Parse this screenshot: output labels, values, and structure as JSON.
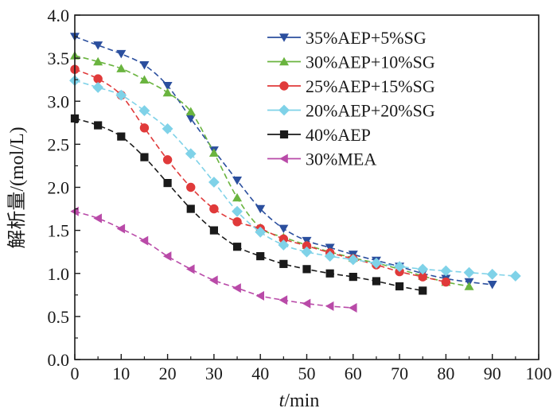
{
  "chart_data": {
    "type": "line",
    "xlabel_italic": "t",
    "xlabel_unit": "/min",
    "ylabel": "解析量/(mol/L)",
    "xlim": [
      0,
      100
    ],
    "ylim": [
      0,
      4.0
    ],
    "xticks": [
      "0",
      "10",
      "20",
      "30",
      "40",
      "50",
      "60",
      "70",
      "80",
      "90",
      "100"
    ],
    "yticks": [
      "0.0",
      "0.5",
      "1.0",
      "1.5",
      "2.0",
      "2.5",
      "3.0",
      "3.5",
      "4.0"
    ],
    "grid": false,
    "legend_position": "top-right",
    "series": [
      {
        "name": "35%AEP+5%SG",
        "color": "#2b4f9e",
        "marker": "triangle-down",
        "x": [
          0,
          5,
          10,
          15,
          20,
          25,
          30,
          35,
          40,
          45,
          50,
          55,
          60,
          65,
          70,
          75,
          80,
          85,
          90
        ],
        "y": [
          3.75,
          3.65,
          3.55,
          3.42,
          3.18,
          2.8,
          2.43,
          2.08,
          1.75,
          1.52,
          1.38,
          1.3,
          1.22,
          1.15,
          1.08,
          1.0,
          0.94,
          0.9,
          0.87
        ]
      },
      {
        "name": "30%AEP+10%SG",
        "color": "#6ab43f",
        "marker": "triangle-up",
        "x": [
          0,
          5,
          10,
          15,
          20,
          25,
          30,
          35,
          40,
          45,
          50,
          55,
          60,
          65,
          70,
          75,
          80,
          85
        ],
        "y": [
          3.53,
          3.46,
          3.38,
          3.25,
          3.1,
          2.88,
          2.4,
          1.88,
          1.53,
          1.42,
          1.33,
          1.25,
          1.18,
          1.12,
          1.05,
          0.97,
          0.9,
          0.85
        ]
      },
      {
        "name": "25%AEP+15%SG",
        "color": "#e03a3a",
        "marker": "circle",
        "x": [
          0,
          5,
          10,
          15,
          20,
          25,
          30,
          35,
          40,
          45,
          50,
          55,
          60,
          65,
          70,
          75,
          80
        ],
        "y": [
          3.37,
          3.26,
          3.07,
          2.69,
          2.32,
          2.0,
          1.75,
          1.6,
          1.52,
          1.4,
          1.32,
          1.24,
          1.17,
          1.1,
          1.02,
          0.96,
          0.9
        ]
      },
      {
        "name": "20%AEP+20%SG",
        "color": "#7fd2e8",
        "marker": "diamond",
        "x": [
          0,
          5,
          10,
          15,
          20,
          25,
          30,
          35,
          40,
          45,
          50,
          55,
          60,
          65,
          70,
          75,
          80,
          85,
          90,
          95
        ],
        "y": [
          3.24,
          3.16,
          3.07,
          2.89,
          2.68,
          2.39,
          2.06,
          1.72,
          1.48,
          1.33,
          1.25,
          1.2,
          1.16,
          1.12,
          1.08,
          1.05,
          1.03,
          1.01,
          0.99,
          0.97
        ]
      },
      {
        "name": "40%AEP",
        "color": "#1a1a1a",
        "marker": "square",
        "x": [
          0,
          5,
          10,
          15,
          20,
          25,
          30,
          35,
          40,
          45,
          50,
          55,
          60,
          65,
          70,
          75
        ],
        "y": [
          2.8,
          2.72,
          2.59,
          2.35,
          2.05,
          1.75,
          1.5,
          1.31,
          1.2,
          1.11,
          1.05,
          1.0,
          0.96,
          0.91,
          0.85,
          0.8
        ]
      },
      {
        "name": "30%MEA",
        "color": "#b94aa8",
        "marker": "triangle-left",
        "x": [
          0,
          5,
          10,
          15,
          20,
          25,
          30,
          35,
          40,
          45,
          50,
          55,
          60
        ],
        "y": [
          1.72,
          1.64,
          1.52,
          1.38,
          1.2,
          1.05,
          0.92,
          0.83,
          0.74,
          0.69,
          0.65,
          0.62,
          0.6
        ]
      }
    ]
  }
}
